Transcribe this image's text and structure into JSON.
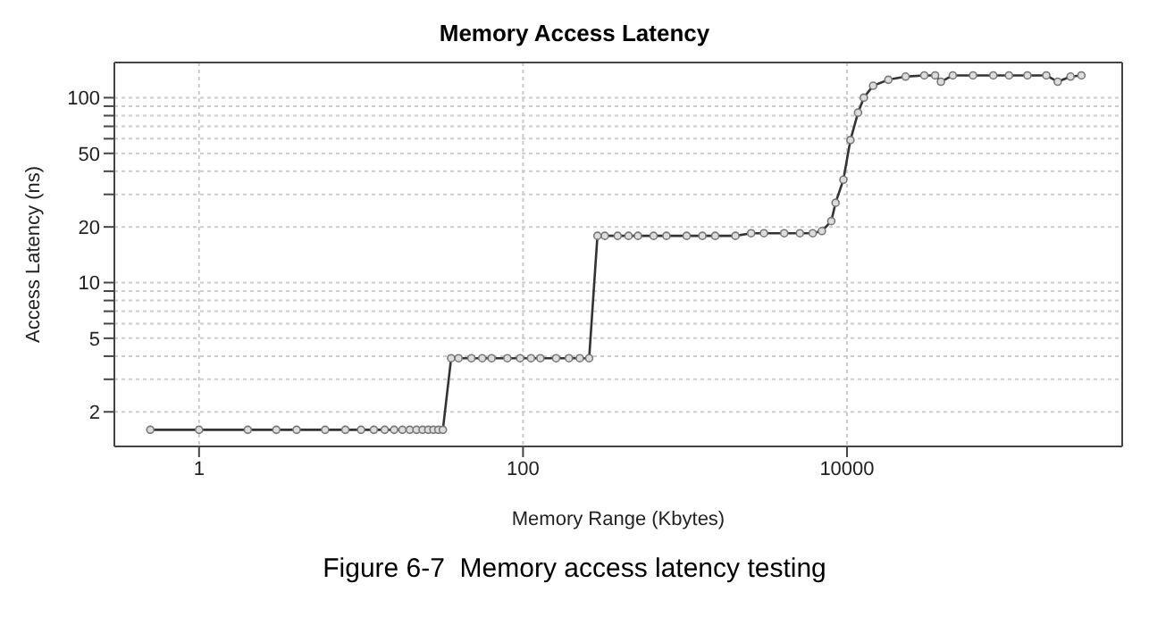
{
  "chart_data": {
    "type": "line",
    "title": "Memory Access Latency",
    "xlabel": "Memory Range (Kbytes)",
    "ylabel": "Access Latency (ns)",
    "log": "xy",
    "grid": true,
    "marker": "circle",
    "line_style": "solid",
    "xlim": [
      0.3,
      500000
    ],
    "xticks": [
      1,
      100,
      10000
    ],
    "ylim": [
      1.3,
      155
    ],
    "yticks": [
      2,
      {
        "value": 3,
        "label": null
      },
      {
        "value": 4,
        "label": null
      },
      5,
      {
        "value": 6,
        "label": null
      },
      {
        "value": 7,
        "label": null
      },
      {
        "value": 8,
        "label": null
      },
      {
        "value": 9,
        "label": null
      },
      10,
      20,
      {
        "value": 30,
        "label": null
      },
      {
        "value": 40,
        "label": null
      },
      50,
      {
        "value": 60,
        "label": null
      },
      {
        "value": 70,
        "label": null
      },
      {
        "value": 80,
        "label": null
      },
      {
        "value": 90,
        "label": null
      },
      100
    ],
    "x": [
      0.5,
      1,
      2,
      3,
      4,
      6,
      8,
      10,
      12,
      14,
      16,
      18,
      20,
      22,
      24,
      26,
      28,
      30,
      32,
      36,
      40,
      48,
      56,
      64,
      80,
      96,
      112,
      128,
      160,
      192,
      224,
      256,
      288,
      320,
      384,
      448,
      512,
      640,
      768,
      1024,
      1280,
      1536,
      2048,
      2560,
      3072,
      4096,
      5120,
      6144,
      7000,
      8000,
      8500,
      9500,
      10500,
      11700,
      12700,
      14500,
      18000,
      23000,
      30000,
      35000,
      38000,
      45000,
      60000,
      80000,
      100000,
      130000,
      170000,
      200000,
      240000,
      280000
    ],
    "series": [
      {
        "color": "#333333",
        "values": [
          1.6,
          1.6,
          1.6,
          1.6,
          1.6,
          1.6,
          1.6,
          1.6,
          1.6,
          1.6,
          1.6,
          1.6,
          1.6,
          1.6,
          1.6,
          1.6,
          1.6,
          1.6,
          1.6,
          3.9,
          3.9,
          3.9,
          3.9,
          3.9,
          3.9,
          3.9,
          3.9,
          3.9,
          3.9,
          3.9,
          3.9,
          3.9,
          17.9,
          17.9,
          17.9,
          17.9,
          17.9,
          17.9,
          17.9,
          17.9,
          17.9,
          17.9,
          17.9,
          18.5,
          18.5,
          18.5,
          18.5,
          18.5,
          19,
          21.5,
          27,
          36,
          59,
          83,
          100,
          116,
          125,
          130,
          132,
          132,
          122,
          132,
          132,
          132,
          132,
          132,
          132,
          122,
          130,
          132
        ]
      }
    ],
    "annotations": [
      "Figure 6-7  Memory access latency testing"
    ]
  }
}
